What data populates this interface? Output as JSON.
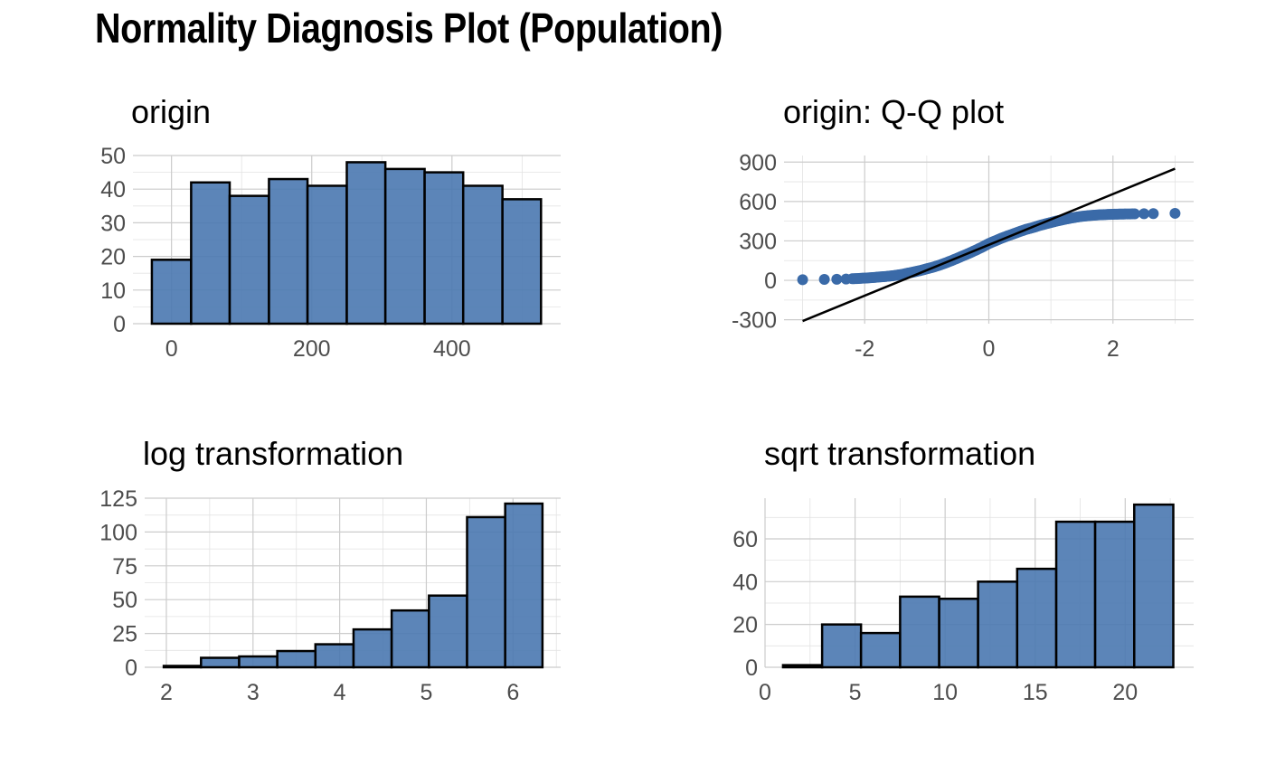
{
  "title": "Normality Diagnosis Plot (Population)",
  "colors": {
    "fill": "#4a78b0",
    "point": "#3a6aa8",
    "outline": "#000000",
    "line": "#000000"
  },
  "chart_data": [
    {
      "id": "origin",
      "type": "bar",
      "title": "origin",
      "xlabel": "",
      "ylabel": "",
      "grid": true,
      "bin_edges": [
        -28,
        28,
        83,
        139,
        194,
        250,
        305,
        361,
        416,
        472,
        527
      ],
      "values": [
        19,
        42,
        38,
        43,
        41,
        48,
        46,
        45,
        41,
        37
      ],
      "xlim": [
        -55,
        555
      ],
      "ylim": [
        0,
        50
      ],
      "xticks": [
        0,
        200,
        400
      ],
      "xtick_labels": [
        "0",
        "200",
        "400"
      ],
      "yticks": [
        0,
        10,
        20,
        30,
        40,
        50
      ],
      "ytick_labels": [
        "0",
        "10",
        "20",
        "30",
        "40",
        "50"
      ]
    },
    {
      "id": "qq",
      "type": "scatter",
      "title": "origin: Q-Q plot",
      "xlabel": "",
      "ylabel": "",
      "grid": true,
      "xlim": [
        -3.3,
        3.3
      ],
      "ylim": [
        -330,
        950
      ],
      "xticks": [
        -2,
        0,
        2
      ],
      "xtick_labels": [
        "-2",
        "0",
        "2"
      ],
      "yticks": [
        -300,
        0,
        300,
        600,
        900
      ],
      "ytick_labels": [
        "-300",
        "0",
        "300",
        "600",
        "900"
      ],
      "x": [
        -3.0,
        -2.65,
        -2.45,
        -2.3,
        -2.2,
        -2.1,
        -2.0,
        -1.9,
        -1.8,
        -1.7,
        -1.6,
        -1.5,
        -1.4,
        -1.3,
        -1.2,
        -1.1,
        -1.0,
        -0.9,
        -0.8,
        -0.7,
        -0.6,
        -0.5,
        -0.4,
        -0.3,
        -0.2,
        -0.1,
        0.0,
        0.1,
        0.2,
        0.3,
        0.4,
        0.5,
        0.6,
        0.7,
        0.8,
        0.9,
        1.0,
        1.1,
        1.2,
        1.3,
        1.4,
        1.5,
        1.6,
        1.7,
        1.8,
        1.9,
        2.0,
        2.1,
        2.2,
        2.35,
        2.5,
        2.65,
        3.0
      ],
      "y": [
        5,
        7,
        8,
        10,
        12,
        14,
        17,
        20,
        24,
        28,
        32,
        38,
        45,
        55,
        65,
        75,
        88,
        100,
        115,
        132,
        150,
        170,
        190,
        210,
        232,
        255,
        280,
        300,
        320,
        338,
        355,
        372,
        388,
        400,
        415,
        428,
        440,
        452,
        462,
        472,
        480,
        487,
        492,
        496,
        499,
        501,
        503,
        504,
        505,
        506,
        507,
        508,
        510
      ],
      "reference_line": {
        "x1": -3.0,
        "y1": -310,
        "x2": 3.0,
        "y2": 850
      }
    },
    {
      "id": "log",
      "type": "bar",
      "title": "log transformation",
      "xlabel": "",
      "ylabel": "",
      "grid": true,
      "bin_edges": [
        1.97,
        2.4,
        2.84,
        3.28,
        3.72,
        4.16,
        4.6,
        5.03,
        5.47,
        5.91,
        6.34
      ],
      "values": [
        1,
        7,
        8,
        12,
        17,
        28,
        42,
        53,
        111,
        121
      ],
      "xlim": [
        1.75,
        6.55
      ],
      "ylim": [
        0,
        125
      ],
      "xticks": [
        2,
        3,
        4,
        5,
        6
      ],
      "xtick_labels": [
        "2",
        "3",
        "4",
        "5",
        "6"
      ],
      "yticks": [
        0,
        25,
        50,
        75,
        100,
        125
      ],
      "ytick_labels": [
        "0",
        "25",
        "50",
        "75",
        "100",
        "125"
      ]
    },
    {
      "id": "sqrt",
      "type": "bar",
      "title": "sqrt transformation",
      "xlabel": "",
      "ylabel": "",
      "grid": true,
      "bin_edges": [
        1.0,
        3.17,
        5.33,
        7.5,
        9.67,
        11.83,
        14.0,
        16.17,
        18.33,
        20.5,
        22.67
      ],
      "values": [
        1,
        20,
        16,
        33,
        32,
        40,
        46,
        68,
        68,
        76
      ],
      "xlim": [
        0,
        23.8
      ],
      "ylim": [
        0,
        79
      ],
      "xticks": [
        0,
        5,
        10,
        15,
        20
      ],
      "xtick_labels": [
        "0",
        "5",
        "10",
        "15",
        "20"
      ],
      "yticks": [
        0,
        20,
        40,
        60
      ],
      "ytick_labels": [
        "0",
        "20",
        "40",
        "60"
      ]
    }
  ]
}
